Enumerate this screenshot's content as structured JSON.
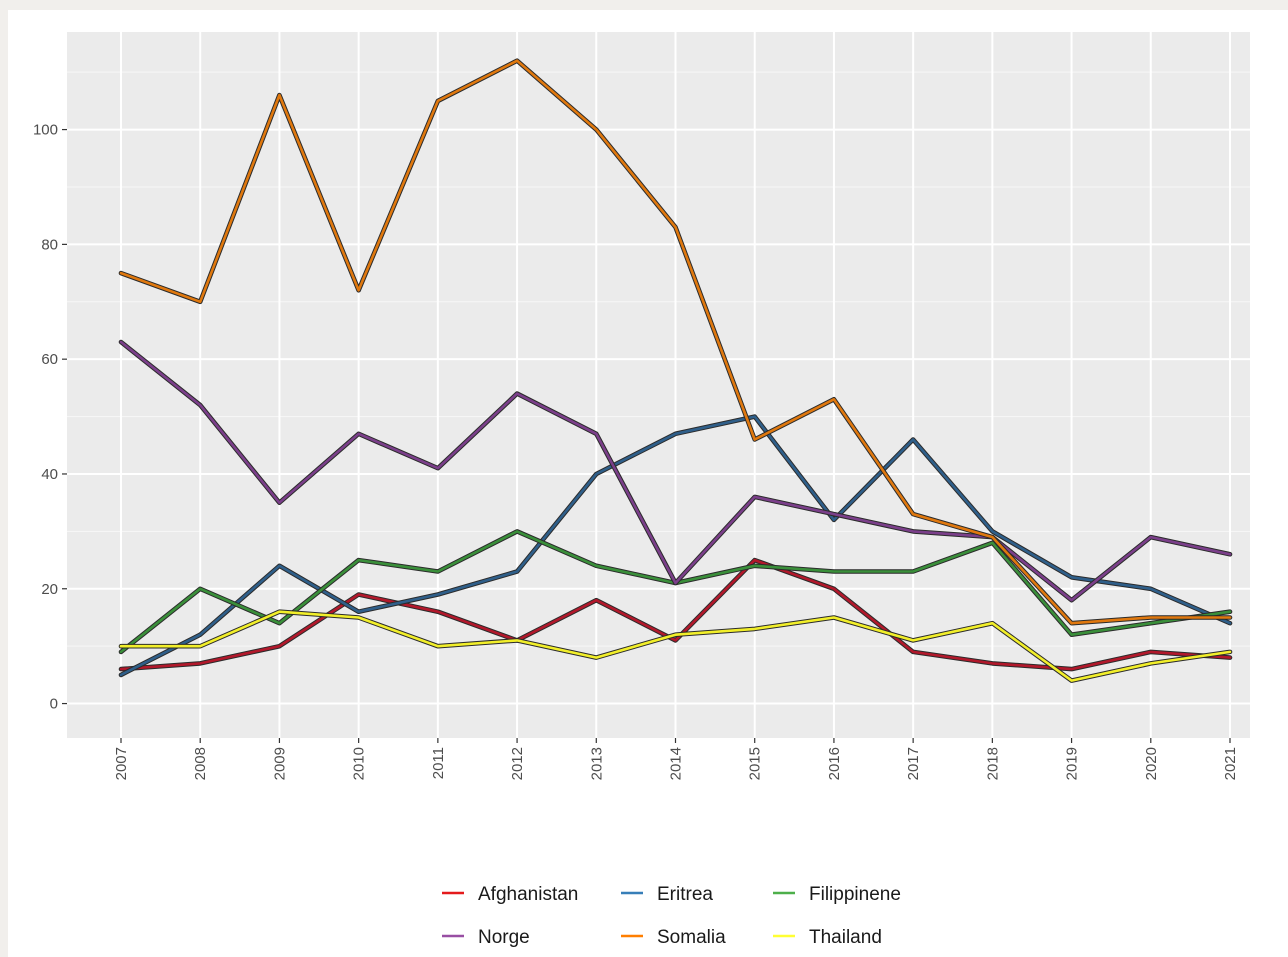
{
  "chart_data": {
    "type": "line",
    "title": "",
    "xlabel": "",
    "ylabel": "",
    "x": [
      2007,
      2008,
      2009,
      2010,
      2011,
      2012,
      2013,
      2014,
      2015,
      2016,
      2017,
      2018,
      2019,
      2020,
      2021
    ],
    "xticks": [
      "2007",
      "2008",
      "2009",
      "2010",
      "2011",
      "2012",
      "2013",
      "2014",
      "2015",
      "2016",
      "2017",
      "2018",
      "2019",
      "2020",
      "2021"
    ],
    "ylim": [
      -6,
      117
    ],
    "yticks": [
      "0",
      "20",
      "40",
      "60",
      "80",
      "100"
    ],
    "grid": true,
    "legend_position": "bottom",
    "series": [
      {
        "name": "Afghanistan",
        "color": "#e41a1c",
        "draw_color": "#b2182b",
        "values": [
          6,
          7,
          10,
          19,
          16,
          11,
          18,
          11,
          25,
          20,
          9,
          7,
          6,
          9,
          8
        ]
      },
      {
        "name": "Eritrea",
        "color": "#377eb8",
        "draw_color": "#2f5f8a",
        "values": [
          5,
          12,
          24,
          16,
          19,
          23,
          40,
          47,
          50,
          32,
          46,
          30,
          22,
          20,
          14
        ]
      },
      {
        "name": "Filippinene",
        "color": "#4daf4a",
        "draw_color": "#3a8f3a",
        "values": [
          9,
          20,
          14,
          25,
          23,
          30,
          24,
          21,
          24,
          23,
          23,
          28,
          12,
          14,
          16
        ]
      },
      {
        "name": "Norge",
        "color": "#984ea3",
        "draw_color": "#7b3f8a",
        "values": [
          63,
          52,
          35,
          47,
          41,
          54,
          47,
          21,
          36,
          33,
          30,
          29,
          18,
          29,
          26
        ]
      },
      {
        "name": "Somalia",
        "color": "#ff7f00",
        "draw_color": "#e0780e",
        "values": [
          75,
          70,
          106,
          72,
          105,
          112,
          100,
          83,
          46,
          53,
          33,
          29,
          14,
          15,
          15
        ]
      },
      {
        "name": "Thailand",
        "color": "#ffff33",
        "draw_color": "#f2ef2a",
        "values": [
          10,
          10,
          16,
          15,
          10,
          11,
          8,
          12,
          13,
          15,
          11,
          14,
          4,
          7,
          9
        ]
      }
    ],
    "legend_order": [
      "Afghanistan",
      "Eritrea",
      "Filippinene",
      "Norge",
      "Somalia",
      "Thailand"
    ]
  }
}
